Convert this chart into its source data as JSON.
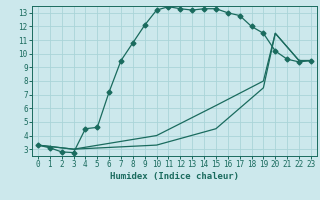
{
  "xlabel": "Humidex (Indice chaleur)",
  "background_color": "#cce8ec",
  "grid_color": "#aad4d8",
  "line_color": "#1a6b5e",
  "xlim": [
    -0.5,
    23.5
  ],
  "ylim": [
    2.5,
    13.5
  ],
  "xticks": [
    0,
    1,
    2,
    3,
    4,
    5,
    6,
    7,
    8,
    9,
    10,
    11,
    12,
    13,
    14,
    15,
    16,
    17,
    18,
    19,
    20,
    21,
    22,
    23
  ],
  "yticks": [
    3,
    4,
    5,
    6,
    7,
    8,
    9,
    10,
    11,
    12,
    13
  ],
  "line1_x": [
    0,
    1,
    2,
    3,
    4,
    5,
    6,
    7,
    8,
    9,
    10,
    11,
    12,
    13,
    14,
    15,
    16,
    17,
    18,
    19,
    20,
    21,
    22,
    23
  ],
  "line1_y": [
    3.3,
    3.1,
    2.8,
    2.75,
    4.5,
    4.6,
    7.2,
    9.5,
    10.8,
    12.1,
    13.2,
    13.45,
    13.3,
    13.2,
    13.3,
    13.3,
    13.0,
    12.8,
    12.0,
    11.5,
    10.2,
    9.6,
    9.4,
    9.5
  ],
  "line2_x": [
    0,
    3,
    10,
    15,
    19,
    20,
    22,
    23
  ],
  "line2_y": [
    3.3,
    3.0,
    4.0,
    6.2,
    8.0,
    11.5,
    9.5,
    9.5
  ],
  "line3_x": [
    0,
    3,
    10,
    15,
    19,
    20,
    22,
    23
  ],
  "line3_y": [
    3.3,
    3.0,
    3.3,
    4.5,
    7.5,
    11.5,
    9.5,
    9.5
  ],
  "marker": "D",
  "marker_size": 2.5
}
